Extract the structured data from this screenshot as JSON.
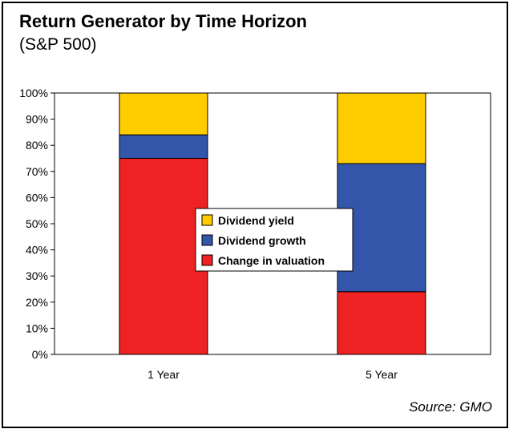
{
  "chart_data": {
    "type": "bar",
    "stacked": true,
    "title": "Return Generator by Time Horizon",
    "subtitle": "(S&P 500)",
    "source": "Source: GMO",
    "categories": [
      "1 Year",
      "5 Year"
    ],
    "series": [
      {
        "name": "Change in valuation",
        "values": [
          75,
          24
        ],
        "color": "#ee2222"
      },
      {
        "name": "Dividend growth",
        "values": [
          9,
          49
        ],
        "color": "#3355aa"
      },
      {
        "name": "Dividend yield",
        "values": [
          16,
          27
        ],
        "color": "#ffcc00"
      }
    ],
    "ylim": [
      0,
      100
    ],
    "yticks": [
      "0%",
      "10%",
      "20%",
      "30%",
      "40%",
      "50%",
      "60%",
      "70%",
      "80%",
      "90%",
      "100%"
    ],
    "legend_order": [
      "Dividend yield",
      "Dividend growth",
      "Change in valuation"
    ],
    "legend_position": "center",
    "grid": false
  }
}
